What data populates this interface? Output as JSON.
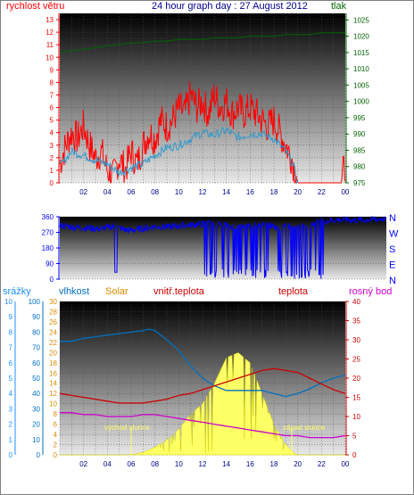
{
  "colors": {
    "wind": "#ff0000",
    "wind_gust": "#ff0000",
    "wind_avg": "#3399cc",
    "pressure": "#006600",
    "direction": "#0000ff",
    "precip": "#1e90ff",
    "humidity": "#0070c0",
    "solar": "#ffff66",
    "solar_axis": "#d98c00",
    "indoor_temp": "#cc0000",
    "temp": "#cc0000",
    "dew": "#cc00cc",
    "title": "#00008b",
    "grid_bg_top": "#000000",
    "grid_bg_bottom": "#e8e8e8"
  },
  "chart_data": [
    {
      "type": "line",
      "title": "24 hour graph day : 27 August 2012",
      "left_axis_label": "rychlost větru",
      "right_axis_label": "tlak",
      "x_ticks": [
        "02",
        "04",
        "06",
        "08",
        "10",
        "12",
        "14",
        "16",
        "18",
        "20",
        "22",
        "00"
      ],
      "left_ticks": [
        "0",
        "1",
        "2",
        "3",
        "4",
        "5",
        "6",
        "7",
        "8",
        "9",
        "10",
        "11",
        "12",
        "13"
      ],
      "right_ticks": [
        "975",
        "980",
        "985",
        "990",
        "995",
        "1000",
        "1005",
        "1010",
        "1015",
        "1020",
        "1025"
      ],
      "ylim_left": [
        0,
        13.5
      ],
      "ylim_right": [
        975,
        1027
      ],
      "series": [
        {
          "name": "gust",
          "x": [
            0,
            0.5,
            1,
            1.5,
            2,
            2.5,
            3,
            3.5,
            4,
            4.5,
            5,
            5.5,
            6,
            6.5,
            7,
            7.5,
            8,
            8.5,
            9,
            9.5,
            10,
            10.5,
            11,
            11.5,
            12,
            12.5,
            13,
            13.5,
            14,
            14.5,
            15,
            15.5,
            16,
            16.5,
            17,
            17.5,
            18,
            18.5,
            19,
            19.5,
            20,
            21,
            22,
            23,
            23.6,
            24
          ],
          "values": [
            1.5,
            3,
            4,
            3.5,
            4.5,
            3,
            2,
            2.5,
            1,
            0.5,
            2,
            1,
            2.5,
            1.5,
            3,
            4,
            3.5,
            5,
            4.5,
            5,
            6,
            5.5,
            7,
            6,
            6.5,
            5.5,
            7,
            6,
            6.5,
            5.5,
            6,
            5.5,
            6,
            5.5,
            5,
            4.5,
            5,
            4,
            3,
            2,
            0,
            0,
            0,
            0,
            0,
            1.5
          ]
        },
        {
          "name": "average",
          "x": [
            0,
            1,
            2,
            3,
            4,
            5,
            6,
            7,
            8,
            9,
            10,
            11,
            12,
            13,
            14,
            15,
            16,
            17,
            18,
            19,
            19.6,
            20
          ],
          "values": [
            1.3,
            2.5,
            2.2,
            1.8,
            1.5,
            0.8,
            1.2,
            1.5,
            2.2,
            2.8,
            3,
            3.5,
            4,
            3.8,
            4.2,
            3.6,
            3.9,
            3.9,
            3.5,
            2.5,
            1.5,
            0
          ]
        },
        {
          "name": "pressure",
          "x": [
            0,
            1,
            2,
            3,
            4,
            5,
            6,
            7,
            8,
            9,
            10,
            11,
            12,
            13,
            14,
            15,
            16,
            17,
            18,
            19,
            20,
            21,
            22,
            23,
            24
          ],
          "values": [
            1015,
            1015.5,
            1016,
            1016.5,
            1017,
            1017.5,
            1018,
            1018,
            1018.5,
            1018.5,
            1019,
            1019,
            1019,
            1019.5,
            1019.5,
            1019.5,
            1020,
            1020,
            1020,
            1020.5,
            1020.5,
            1020.5,
            1021,
            1021,
            1021
          ]
        }
      ]
    },
    {
      "type": "line",
      "left_ticks": [
        "0",
        "90",
        "180",
        "270",
        "360"
      ],
      "right_labels": [
        "N",
        "W",
        "S",
        "E",
        "N"
      ],
      "ylim": [
        0,
        360
      ],
      "series": [
        {
          "name": "direction",
          "x": [
            0,
            1,
            2,
            3,
            4,
            5,
            6,
            7,
            8,
            9,
            10,
            11,
            12,
            13,
            14,
            15,
            16,
            17,
            18,
            19,
            20,
            21,
            22,
            23,
            24
          ],
          "values": [
            310,
            300,
            295,
            290,
            305,
            280,
            290,
            305,
            300,
            310,
            315,
            320,
            315,
            300,
            310,
            320,
            300,
            310,
            300,
            330,
            340,
            345,
            340,
            345,
            350
          ]
        }
      ]
    },
    {
      "type": "area",
      "legend": [
        "srážky",
        "vlhkost",
        "Solar",
        "vnitř.teplota",
        "teplota",
        "rosný bod"
      ],
      "axis_precip_ticks": [
        "0",
        "1",
        "2",
        "3",
        "4",
        "5",
        "6",
        "7",
        "8",
        "9",
        "10"
      ],
      "axis_humidity_ticks": [
        "0",
        "10",
        "20",
        "30",
        "40",
        "50",
        "60",
        "70",
        "80",
        "90",
        "100"
      ],
      "axis_solar_ticks": [
        "0",
        "2",
        "4",
        "6",
        "8",
        "10",
        "12",
        "14",
        "16",
        "18",
        "20",
        "22",
        "24",
        "26",
        "28",
        "30"
      ],
      "axis_temp_ticks": [
        "0",
        "5",
        "10",
        "15",
        "20",
        "25",
        "30",
        "35",
        "40"
      ],
      "annotations": [
        {
          "text": "východ slunce",
          "x": 6.0
        },
        {
          "text": "západ slunce",
          "x": 19.5
        }
      ],
      "x_ticks": [
        "02",
        "04",
        "06",
        "08",
        "10",
        "12",
        "14",
        "16",
        "18",
        "20",
        "22",
        "00"
      ],
      "series": [
        {
          "name": "vlhkost",
          "unit": "%",
          "x": [
            0,
            1,
            2,
            3,
            4,
            5,
            6,
            7,
            7.5,
            8,
            9,
            10,
            11,
            12,
            13,
            14,
            15,
            16,
            17,
            18,
            19,
            20,
            21,
            22,
            23,
            24
          ],
          "values": [
            74,
            74,
            76,
            77,
            78,
            79,
            80,
            81,
            82,
            81,
            75,
            68,
            58,
            50,
            45,
            42,
            42,
            42,
            42,
            40,
            38,
            40,
            43,
            47,
            50,
            52
          ]
        },
        {
          "name": "Solar",
          "x": [
            0,
            5.7,
            6,
            7,
            8,
            9,
            10,
            11,
            12,
            13,
            14,
            15,
            16,
            17,
            18,
            19,
            19.6,
            20,
            24
          ],
          "values": [
            0,
            0,
            0,
            0.5,
            1.5,
            3,
            5,
            8,
            10,
            14,
            19,
            20,
            18,
            12,
            6,
            2,
            0.5,
            0,
            0
          ]
        },
        {
          "name": "teplota",
          "unit": "°C",
          "x": [
            0,
            1,
            2,
            3,
            4,
            5,
            6,
            7,
            8,
            9,
            10,
            11,
            12,
            13,
            14,
            15,
            16,
            17,
            18,
            19,
            20,
            21,
            22,
            23,
            24
          ],
          "values": [
            16,
            15.5,
            15,
            14.5,
            14,
            13.5,
            13.5,
            13.5,
            14,
            14.5,
            15.5,
            16,
            17,
            18,
            19,
            20,
            21,
            22,
            22.5,
            22,
            21.5,
            20,
            18.5,
            17,
            16
          ]
        },
        {
          "name": "rosný bod",
          "unit": "°C",
          "x": [
            0,
            1,
            2,
            3,
            4,
            5,
            6,
            7,
            8,
            9,
            10,
            11,
            12,
            13,
            14,
            15,
            16,
            17,
            18,
            19,
            20,
            21,
            22,
            23,
            24
          ],
          "values": [
            11,
            11,
            10.5,
            10.5,
            10,
            10,
            10,
            10.5,
            10.5,
            10,
            9.5,
            9,
            8.5,
            8,
            7.5,
            7,
            6.5,
            6,
            5.5,
            5,
            5,
            4.5,
            4.5,
            4.5,
            5
          ]
        }
      ]
    }
  ]
}
